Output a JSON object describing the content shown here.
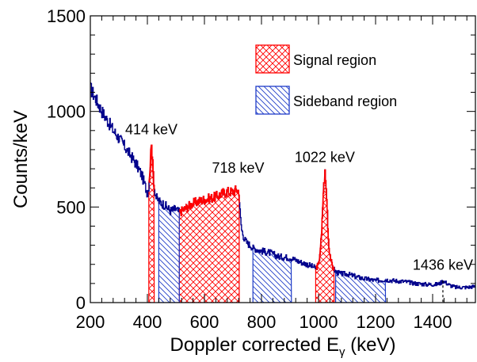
{
  "chart_data": {
    "type": "histogram",
    "title": "",
    "xlabel": "Doppler corrected E",
    "xlabel_subscript": "γ",
    "xlabel_unit": " (keV)",
    "ylabel": "Counts/keV",
    "xlim": [
      200,
      1550
    ],
    "ylim": [
      0,
      1500
    ],
    "x_ticks": [
      200,
      400,
      600,
      800,
      1000,
      1200,
      1400
    ],
    "y_ticks": [
      0,
      500,
      1000,
      1500
    ],
    "grid": false,
    "legend_position": "top-right",
    "colors": {
      "spectrum": "#00008b",
      "signal": "#ff0000",
      "sideband": "#1f3cc8"
    },
    "legend": [
      {
        "label": "Signal region",
        "style": "cross-hatch",
        "color": "#ff0000"
      },
      {
        "label": "Sideband region",
        "style": "diagonal-hatch",
        "color": "#1f3cc8"
      }
    ],
    "annotations": [
      {
        "text": "414 keV",
        "x": 414,
        "y": 880
      },
      {
        "text": "718 keV",
        "x": 718,
        "y": 680
      },
      {
        "text": "1022 keV",
        "x": 1022,
        "y": 735
      },
      {
        "text": "1436 keV",
        "x": 1436,
        "y": 172
      }
    ],
    "marker_line": {
      "x": 1436
    },
    "signal_regions": [
      [
        405,
        424
      ],
      [
        512,
        722
      ],
      [
        990,
        1055
      ]
    ],
    "sideband_regions": [
      [
        440,
        512
      ],
      [
        770,
        905
      ],
      [
        1060,
        1235
      ]
    ],
    "spectrum": {
      "x": [
        200,
        220,
        240,
        260,
        280,
        300,
        320,
        340,
        360,
        380,
        400,
        405,
        410,
        414,
        418,
        424,
        430,
        440,
        460,
        480,
        500,
        512,
        520,
        540,
        560,
        580,
        600,
        620,
        640,
        660,
        680,
        700,
        710,
        720,
        725,
        730,
        740,
        750,
        760,
        770,
        800,
        830,
        860,
        900,
        930,
        960,
        990,
        1000,
        1010,
        1016,
        1022,
        1028,
        1035,
        1045,
        1055,
        1060,
        1080,
        1100,
        1130,
        1160,
        1200,
        1235,
        1260,
        1300,
        1340,
        1380,
        1410,
        1425,
        1436,
        1445,
        1460,
        1480,
        1500,
        1520,
        1550
      ],
      "y": [
        1120,
        1060,
        1000,
        950,
        900,
        860,
        815,
        770,
        725,
        665,
        570,
        620,
        720,
        850,
        720,
        600,
        550,
        530,
        510,
        480,
        490,
        470,
        480,
        500,
        520,
        530,
        540,
        545,
        555,
        570,
        580,
        580,
        590,
        585,
        450,
        380,
        330,
        310,
        300,
        285,
        270,
        260,
        240,
        235,
        215,
        200,
        180,
        200,
        350,
        580,
        680,
        550,
        300,
        200,
        170,
        160,
        150,
        150,
        135,
        125,
        115,
        120,
        115,
        110,
        100,
        95,
        95,
        100,
        115,
        105,
        90,
        80,
        80,
        80,
        85
      ]
    }
  }
}
